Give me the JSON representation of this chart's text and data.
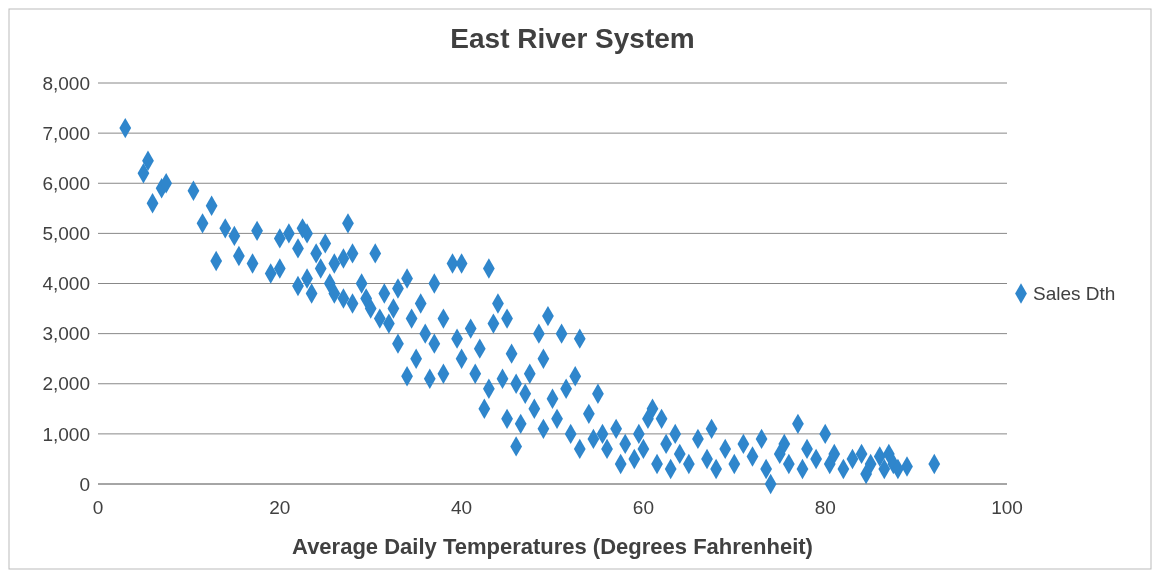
{
  "chart_data": {
    "type": "scatter",
    "title": "East River System",
    "xlabel": "Average Daily Temperatures (Degrees Fahrenheit)",
    "x": [
      3,
      5,
      5.5,
      6,
      7,
      7.5,
      10.5,
      11.5,
      12.5,
      13,
      14,
      15,
      15.5,
      17,
      17.5,
      19,
      20,
      20,
      21,
      22,
      22,
      22.5,
      23,
      23,
      23.5,
      24,
      24.5,
      25,
      25.5,
      26,
      26,
      27,
      27,
      27.5,
      28,
      28,
      29,
      29.5,
      30,
      30.5,
      31,
      31.5,
      32,
      32.5,
      33,
      33,
      34,
      34,
      34.5,
      35,
      35.5,
      36,
      36.5,
      37,
      37,
      38,
      38,
      39,
      39.5,
      40,
      40,
      41,
      41.5,
      42,
      42.5,
      43,
      43,
      43.5,
      44,
      44.5,
      45,
      45,
      45.5,
      46,
      46,
      46.5,
      47,
      47.5,
      48,
      48.5,
      49,
      49,
      49.5,
      50,
      50.5,
      51,
      51.5,
      52,
      52.5,
      53,
      53,
      54,
      54.5,
      55,
      55.5,
      56,
      57,
      57.5,
      58,
      59,
      59.5,
      60,
      60.5,
      61,
      61.5,
      62,
      62.5,
      63,
      63.5,
      64,
      65,
      66,
      67,
      67.5,
      68,
      69,
      70,
      71,
      72,
      73,
      73.5,
      74,
      75,
      75.5,
      76,
      77,
      77.5,
      78,
      79,
      80,
      80.5,
      81,
      82,
      83,
      84,
      84.5,
      85,
      86,
      86.5,
      87,
      87.5,
      88,
      89,
      92
    ],
    "series": [
      {
        "name": "Sales Dth",
        "color": "#2f86cc",
        "values": [
          7100,
          6200,
          6450,
          5600,
          5900,
          6000,
          5850,
          5200,
          5550,
          4450,
          5100,
          4950,
          4550,
          4400,
          5050,
          4200,
          4300,
          4900,
          5000,
          4700,
          3950,
          5100,
          5000,
          4100,
          3800,
          4600,
          4300,
          4800,
          4000,
          3800,
          4400,
          3700,
          4500,
          5200,
          4600,
          3600,
          4000,
          3700,
          3500,
          4600,
          3300,
          3800,
          3200,
          3500,
          2800,
          3900,
          4100,
          2150,
          3300,
          2500,
          3600,
          3000,
          2100,
          2800,
          4000,
          2200,
          3300,
          4400,
          2900,
          4400,
          2500,
          3100,
          2200,
          2700,
          1500,
          4300,
          1900,
          3200,
          3600,
          2100,
          3300,
          1300,
          2600,
          2000,
          750,
          1200,
          1800,
          2200,
          1500,
          3000,
          2500,
          1100,
          3350,
          1700,
          1300,
          3000,
          1900,
          1000,
          2150,
          2900,
          700,
          1400,
          900,
          1800,
          1000,
          700,
          1100,
          400,
          800,
          500,
          1000,
          700,
          1300,
          1500,
          400,
          1300,
          800,
          300,
          1000,
          600,
          400,
          900,
          500,
          1100,
          300,
          700,
          400,
          800,
          550,
          900,
          300,
          0,
          600,
          800,
          400,
          1200,
          300,
          700,
          500,
          1000,
          400,
          600,
          300,
          500,
          600,
          200,
          400,
          550,
          300,
          600,
          400,
          300,
          350,
          400
        ]
      }
    ],
    "xlim": [
      0,
      100
    ],
    "xticks": [
      0,
      20,
      40,
      60,
      80,
      100
    ],
    "ylim": [
      0,
      8000
    ],
    "yticks": [
      {
        "value": 0,
        "label": "0"
      },
      {
        "value": 1000,
        "label": "1,000"
      },
      {
        "value": 2000,
        "label": "2,000"
      },
      {
        "value": 3000,
        "label": "3,000"
      },
      {
        "value": 4000,
        "label": "4,000"
      },
      {
        "value": 5000,
        "label": "5,000"
      },
      {
        "value": 6000,
        "label": "6,000"
      },
      {
        "value": 7000,
        "label": "7,000"
      },
      {
        "value": 8000,
        "label": "8,000"
      }
    ],
    "grid": "y",
    "legend": "right",
    "marker": "diamond"
  }
}
